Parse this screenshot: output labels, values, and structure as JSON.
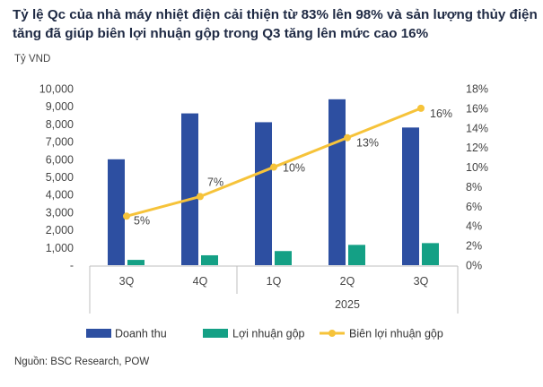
{
  "title": "Tỷ lệ Qc của nhà máy nhiệt điện cải thiện từ 83% lên 98% và sản lượng thủy điện tăng đã giúp biên lợi nhuận gộp trong Q3 tăng lên mức cao 16%",
  "unit_label": "Tỷ VND",
  "source": "Nguồn: BSC Research, POW",
  "colors": {
    "revenue": "#2d4fa1",
    "profit": "#14a085",
    "margin": "#f6c33a"
  },
  "chart_data": {
    "type": "bar",
    "categories": [
      "3Q",
      "4Q",
      "1Q",
      "2Q",
      "3Q"
    ],
    "category_groups": [
      {
        "label": "",
        "from": 0,
        "to": 1
      },
      {
        "label": "2025",
        "from": 2,
        "to": 4
      }
    ],
    "series": [
      {
        "name": "Doanh thu",
        "type": "bar",
        "axis": "left",
        "values": [
          6000,
          8600,
          8100,
          9400,
          7800
        ]
      },
      {
        "name": "Lợi nhuận gộp",
        "type": "bar",
        "axis": "left",
        "values": [
          300,
          560,
          800,
          1150,
          1250
        ]
      },
      {
        "name": "Biên lợi nhuận gộp",
        "type": "line",
        "axis": "right",
        "values": [
          5,
          7,
          10,
          13,
          16
        ],
        "labels": [
          "5%",
          "7%",
          "10%",
          "13%",
          "16%"
        ]
      }
    ],
    "y_left": {
      "min": 0,
      "max": 10000,
      "ticks": [
        "-",
        "1,000",
        "2,000",
        "3,000",
        "4,000",
        "5,000",
        "6,000",
        "7,000",
        "8,000",
        "9,000",
        "10,000"
      ]
    },
    "y_right": {
      "min": 0,
      "max": 18,
      "ticks": [
        "0%",
        "2%",
        "4%",
        "6%",
        "8%",
        "10%",
        "12%",
        "14%",
        "16%",
        "18%"
      ]
    },
    "grid": false,
    "legend_position": "bottom"
  }
}
